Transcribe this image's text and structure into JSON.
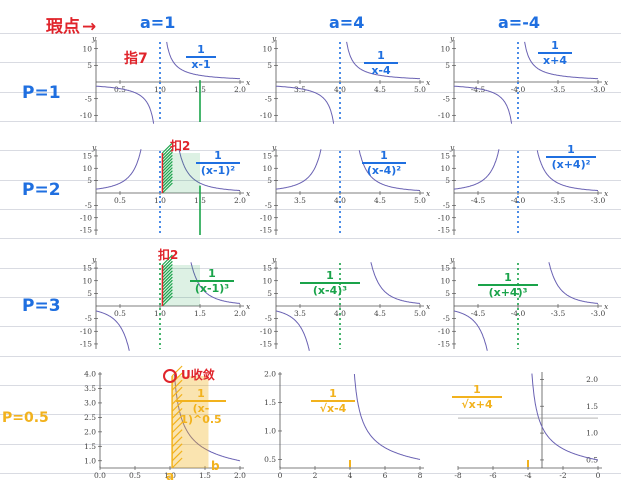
{
  "header": {
    "singular_note": "瑕点",
    "arrow": "→",
    "a1": "a=1",
    "a4": "a=4",
    "am4": "a=-4"
  },
  "rows": {
    "p1": "P=1",
    "p2": "P=2",
    "p3": "P=3",
    "p05": "P=0.5"
  },
  "notes": {
    "shade_word_1": "指7",
    "shade_word_2": "扣2",
    "shade_word_3": "扣2",
    "circle_word": "U收敛",
    "b_label": "b",
    "a_label": "a"
  },
  "colors": {
    "curve": "#6a62b3",
    "axis": "#555555",
    "red": "#e0242b",
    "blue": "#1f6fe0",
    "green": "#1aa34a",
    "yellow": "#f2b21d"
  },
  "fractions": [
    {
      "num": "1",
      "den": "x-1",
      "color": "blue"
    },
    {
      "num": "1",
      "den": "x-4",
      "color": "blue"
    },
    {
      "num": "1",
      "den": "x+4",
      "color": "blue"
    },
    {
      "num": "1",
      "den": "(x-1)²",
      "color": "blue"
    },
    {
      "num": "1",
      "den": "(x-4)²",
      "color": "blue"
    },
    {
      "num": "1",
      "den": "(x+4)²",
      "color": "blue"
    },
    {
      "num": "1",
      "den": "(x-1)³",
      "color": "green"
    },
    {
      "num": "1",
      "den": "(x-4)³",
      "color": "green"
    },
    {
      "num": "1",
      "den": "(x+4)³",
      "color": "green"
    },
    {
      "num": "1",
      "den": "(x-1)^0.5",
      "color": "yellow"
    },
    {
      "num": "1",
      "den": "√x-4",
      "color": "yellow"
    },
    {
      "num": "1",
      "den": "√x+4",
      "color": "yellow"
    }
  ],
  "chart_data": [
    {
      "type": "line",
      "id": "r1c1",
      "title": "",
      "xlabel": "x",
      "ylabel": "y",
      "xlim": [
        0.2,
        2.0
      ],
      "ylim": [
        -12,
        12
      ],
      "xticks": [
        "0.5",
        "1.0",
        "1.5",
        "2.0"
      ],
      "yticks": [
        "10",
        "5",
        "-5",
        "-10"
      ],
      "a": 1,
      "p": 1
    },
    {
      "type": "line",
      "id": "r1c2",
      "title": "",
      "xlabel": "x",
      "ylabel": "y",
      "xlim": [
        3.2,
        5.0
      ],
      "ylim": [
        -12,
        12
      ],
      "xticks": [
        "3.5",
        "4.0",
        "4.5",
        "5.0"
      ],
      "yticks": [
        "10",
        "5",
        "-5",
        "-10"
      ],
      "a": 4,
      "p": 1
    },
    {
      "type": "line",
      "id": "r1c3",
      "title": "",
      "xlabel": "x",
      "ylabel": "y",
      "xlim": [
        -4.8,
        -3.0
      ],
      "ylim": [
        -12,
        12
      ],
      "xticks": [
        "-4.5",
        "-4.0",
        "-3.5",
        "-3.0"
      ],
      "yticks": [
        "10",
        "5",
        "-5",
        "-10"
      ],
      "a": -4,
      "p": 1
    },
    {
      "type": "line",
      "id": "r2c1",
      "title": "",
      "xlabel": "x",
      "ylabel": "y",
      "xlim": [
        0.2,
        2.0
      ],
      "ylim": [
        -17,
        17
      ],
      "xticks": [
        "0.5",
        "1.0",
        "1.5",
        "2.0"
      ],
      "yticks": [
        "15",
        "10",
        "5",
        "-5",
        "-10",
        "-15"
      ],
      "a": 1,
      "p": 2
    },
    {
      "type": "line",
      "id": "r2c2",
      "title": "",
      "xlabel": "x",
      "ylabel": "y",
      "xlim": [
        3.2,
        5.0
      ],
      "ylim": [
        -17,
        17
      ],
      "xticks": [
        "3.5",
        "4.0",
        "4.5",
        "5.0"
      ],
      "yticks": [
        "15",
        "10",
        "5",
        "-5",
        "-10",
        "-15"
      ],
      "a": 4,
      "p": 2
    },
    {
      "type": "line",
      "id": "r2c3",
      "title": "",
      "xlabel": "x",
      "ylabel": "y",
      "xlim": [
        -4.8,
        -3.0
      ],
      "ylim": [
        -17,
        17
      ],
      "xticks": [
        "-4.5",
        "-4.0",
        "-3.5",
        "-3.0"
      ],
      "yticks": [
        "15",
        "10",
        "5",
        "-5",
        "-10",
        "-15"
      ],
      "a": -4,
      "p": 2
    },
    {
      "type": "line",
      "id": "r3c1",
      "title": "",
      "xlabel": "x",
      "ylabel": "y",
      "xlim": [
        0.2,
        2.0
      ],
      "ylim": [
        -17,
        17
      ],
      "xticks": [
        "0.5",
        "1.0",
        "1.5",
        "2.0"
      ],
      "yticks": [
        "15",
        "10",
        "5",
        "-5",
        "-10",
        "-15"
      ],
      "a": 1,
      "p": 3
    },
    {
      "type": "line",
      "id": "r3c2",
      "title": "",
      "xlabel": "x",
      "ylabel": "y",
      "xlim": [
        3.2,
        5.0
      ],
      "ylim": [
        -17,
        17
      ],
      "xticks": [
        "3.5",
        "4.0",
        "4.5",
        "5.0"
      ],
      "yticks": [
        "15",
        "10",
        "5",
        "-5",
        "-10",
        "-15"
      ],
      "a": 4,
      "p": 3
    },
    {
      "type": "line",
      "id": "r3c3",
      "title": "",
      "xlabel": "x",
      "ylabel": "y",
      "xlim": [
        -4.8,
        -3.0
      ],
      "ylim": [
        -17,
        17
      ],
      "xticks": [
        "-4.5",
        "-4.0",
        "-3.5",
        "-3.0"
      ],
      "yticks": [
        "15",
        "10",
        "5",
        "-5",
        "-10",
        "-15"
      ],
      "a": -4,
      "p": 3
    },
    {
      "type": "line",
      "id": "r4c1",
      "title": "",
      "xlabel": "",
      "ylabel": "",
      "xlim": [
        0.0,
        2.0
      ],
      "ylim": [
        0.75,
        4.0
      ],
      "xticks": [
        "0.0",
        "0.5",
        "1.0",
        "1.5",
        "2.0"
      ],
      "yticks": [
        "4.0",
        "3.5",
        "3.0",
        "2.5",
        "2.0",
        "1.5",
        "1.0"
      ],
      "a": 1,
      "p": 0.5
    },
    {
      "type": "line",
      "id": "r4c2",
      "title": "",
      "xlabel": "",
      "ylabel": "",
      "xlim": [
        0.0,
        8.0
      ],
      "ylim": [
        0.35,
        2.0
      ],
      "xticks": [
        "0",
        "2",
        "4",
        "6",
        "8"
      ],
      "yticks": [
        "2.0",
        "1.5",
        "1.0",
        "0.5"
      ],
      "a": 4,
      "p": 0.5
    },
    {
      "type": "line",
      "id": "r4c3",
      "title": "",
      "xlabel": "",
      "ylabel": "",
      "xlim": [
        -8.0,
        0.0
      ],
      "ylim": [
        0.35,
        2.1
      ],
      "xticks": [
        "-8",
        "-6",
        "-4",
        "-2",
        "0"
      ],
      "yticks": [
        "2.0",
        "1.5",
        "1.0",
        "0.5"
      ],
      "a": -4,
      "p": 0.5
    }
  ]
}
